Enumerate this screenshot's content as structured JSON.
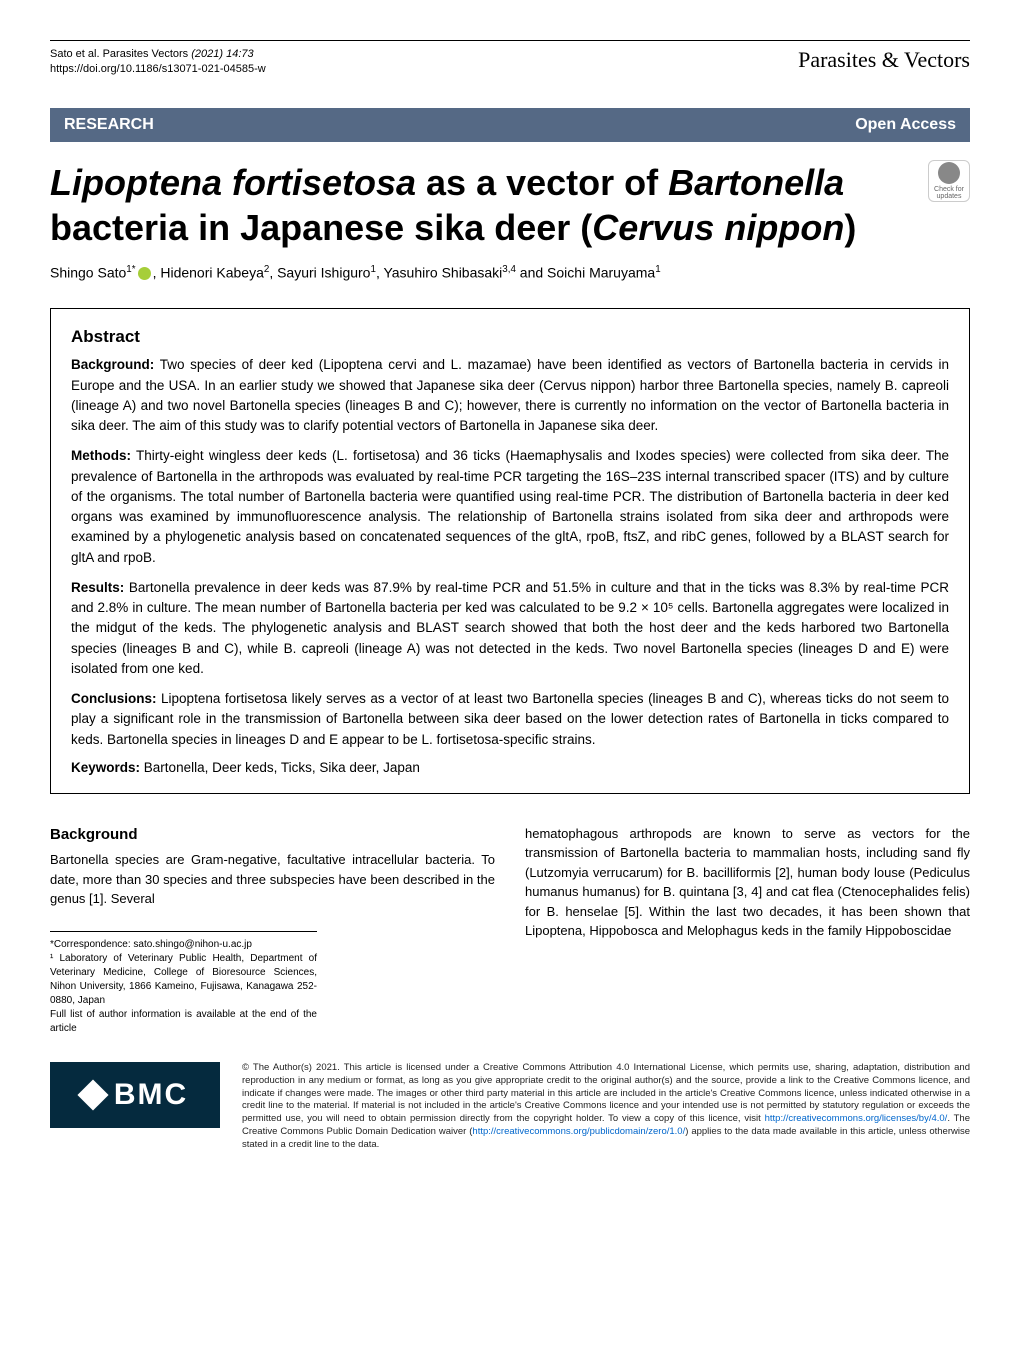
{
  "header": {
    "citation_authors": "Sato et al. Parasites Vectors",
    "citation_year_vol": "(2021) 14:73",
    "doi": "https://doi.org/10.1186/s13071-021-04585-w",
    "journal": "Parasites & Vectors"
  },
  "banner": {
    "left": "RESEARCH",
    "right": "Open Access"
  },
  "title": {
    "part1_italic": "Lipoptena fortisetosa",
    "part2": " as a vector of ",
    "part3_italic": "Bartonella",
    "part4": " bacteria in Japanese sika deer (",
    "part5_italic": "Cervus nippon",
    "part6": ")"
  },
  "check_badge": {
    "line1": "Check for",
    "line2": "updates"
  },
  "authors": {
    "a1": "Shingo Sato",
    "a1_aff": "1*",
    "a2": "Hidenori Kabeya",
    "a2_aff": "2",
    "a3": "Sayuri Ishiguro",
    "a3_aff": "1",
    "a4": "Yasuhiro Shibasaki",
    "a4_aff": "3,4",
    "a5": "Soichi Maruyama",
    "a5_aff": "1"
  },
  "abstract": {
    "heading": "Abstract",
    "background_label": "Background:",
    "background": "Two species of deer ked (Lipoptena cervi and L. mazamae) have been identified as vectors of Bartonella bacteria in cervids in Europe and the USA. In an earlier study we showed that Japanese sika deer (Cervus nippon) harbor three Bartonella species, namely B. capreoli (lineage A) and two novel Bartonella species (lineages B and C); however, there is currently no information on the vector of Bartonella bacteria in sika deer. The aim of this study was to clarify potential vectors of Bartonella in Japanese sika deer.",
    "methods_label": "Methods:",
    "methods": "Thirty-eight wingless deer keds (L. fortisetosa) and 36 ticks (Haemaphysalis and Ixodes species) were collected from sika deer. The prevalence of Bartonella in the arthropods was evaluated by real-time PCR targeting the 16S–23S internal transcribed spacer (ITS) and by culture of the organisms. The total number of Bartonella bacteria were quantified using real-time PCR. The distribution of Bartonella bacteria in deer ked organs was examined by immunofluorescence analysis. The relationship of Bartonella strains isolated from sika deer and arthropods were examined by a phylogenetic analysis based on concatenated sequences of the gltA, rpoB, ftsZ, and ribC genes, followed by a BLAST search for gltA and rpoB.",
    "results_label": "Results:",
    "results": "Bartonella prevalence in deer keds was 87.9% by real-time PCR and 51.5% in culture and that in the ticks was 8.3% by real-time PCR and 2.8% in culture. The mean number of Bartonella bacteria per ked was calculated to be 9.2 × 10⁵ cells. Bartonella aggregates were localized in the midgut of the keds. The phylogenetic analysis and BLAST search showed that both the host deer and the keds harbored two Bartonella species (lineages B and C), while B. capreoli (lineage A) was not detected in the keds. Two novel Bartonella species (lineages D and E) were isolated from one ked.",
    "conclusions_label": "Conclusions:",
    "conclusions": "Lipoptena fortisetosa likely serves as a vector of at least two Bartonella species (lineages B and C), whereas ticks do not seem to play a significant role in the transmission of Bartonella between sika deer based on the lower detection rates of Bartonella in ticks compared to keds. Bartonella species in lineages D and E appear to be L. fortisetosa-specific strains.",
    "keywords_label": "Keywords:",
    "keywords": "Bartonella, Deer keds, Ticks, Sika deer, Japan"
  },
  "body": {
    "background_heading": "Background",
    "left_p1": "Bartonella species are Gram-negative, facultative intracellular bacteria. To date, more than 30 species and three subspecies have been described in the genus [1]. Several",
    "right_p1": "hematophagous arthropods are known to serve as vectors for the transmission of Bartonella bacteria to mammalian hosts, including sand fly (Lutzomyia verrucarum) for B. bacilliformis [2], human body louse (Pediculus humanus humanus) for B. quintana [3, 4] and cat flea (Ctenocephalides felis) for B. henselae [5]. Within the last two decades, it has been shown that Lipoptena, Hippobosca and Melophagus keds in the family Hippoboscidae"
  },
  "correspondence": {
    "email_label": "*Correspondence:",
    "email": "sato.shingo@nihon-u.ac.jp",
    "aff1": "¹ Laboratory of Veterinary Public Health, Department of Veterinary Medicine, College of Bioresource Sciences, Nihon University, 1866 Kameino, Fujisawa, Kanagawa 252-0880, Japan",
    "full_list": "Full list of author information is available at the end of the article"
  },
  "footer": {
    "bmc": "BMC",
    "license": "© The Author(s) 2021. This article is licensed under a Creative Commons Attribution 4.0 International License, which permits use, sharing, adaptation, distribution and reproduction in any medium or format, as long as you give appropriate credit to the original author(s) and the source, provide a link to the Creative Commons licence, and indicate if changes were made. The images or other third party material in this article are included in the article's Creative Commons licence, unless indicated otherwise in a credit line to the material. If material is not included in the article's Creative Commons licence and your intended use is not permitted by statutory regulation or exceeds the permitted use, you will need to obtain permission directly from the copyright holder. To view a copy of this licence, visit ",
    "license_link1": "http://creativecommons.org/licenses/by/4.0/",
    "license2": ". The Creative Commons Public Domain Dedication waiver (",
    "license_link2": "http://creativecommons.org/publicdomain/zero/1.0/",
    "license3": ") applies to the data made available in this article, unless otherwise stated in a credit line to the data."
  }
}
